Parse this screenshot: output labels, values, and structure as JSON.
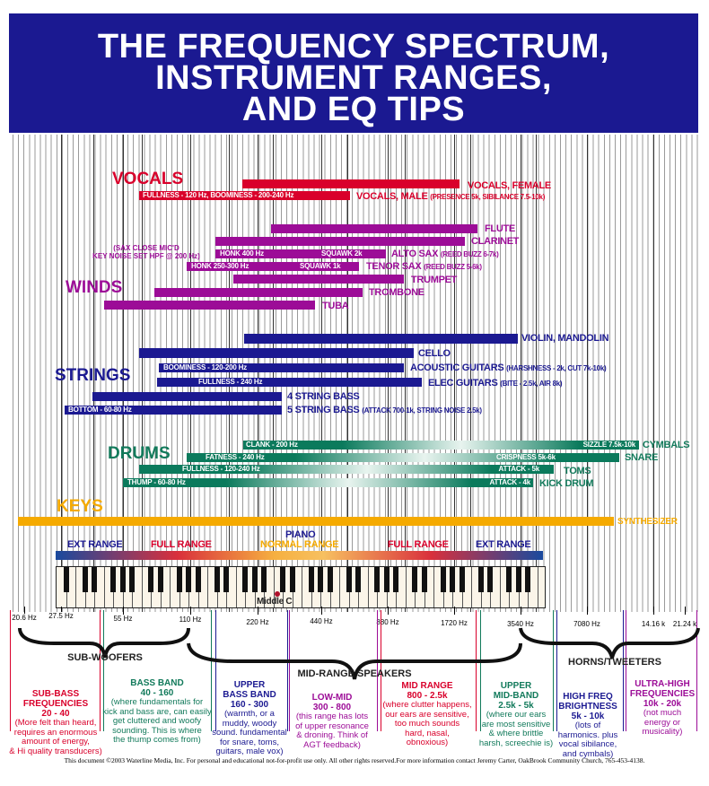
{
  "title": {
    "line1": "THE FREQUENCY SPECTRUM,",
    "line2": "INSTRUMENT RANGES,",
    "line3": "AND EQ TIPS"
  },
  "vocals": {
    "heading": "VOCALS",
    "female": {
      "label": "VOCALS, FEMALE"
    },
    "male": {
      "label": "VOCALS, MALE",
      "note": "(PRESENCE 5k, SIBILANCE 7.5-10k)",
      "inner": "FULLNESS - 120 Hz, BOOMINESS - 200-240 Hz"
    }
  },
  "winds": {
    "heading": "WINDS",
    "sax_note_1": "(SAX CLOSE MIC'D",
    "sax_note_2": "KEY NOISE SET HPF @ 200 Hz)",
    "flute": "FLUTE",
    "clarinet": "CLARINET",
    "alto": {
      "label": "ALTO SAX",
      "note": "(REED BUZZ 6-7k)",
      "inner_left": "HONK 400 Hz",
      "inner_right": "SQUAWK  2k"
    },
    "tenor": {
      "label": "TENOR SAX",
      "note": "(REED BUZZ 5-6k)",
      "inner_left": "HONK 250-300 Hz",
      "inner_right": "SQUAWK  1k"
    },
    "trumpet": "TRUMPET",
    "trombone": "TROMBONE",
    "tuba": "TUBA"
  },
  "strings": {
    "heading": "STRINGS",
    "violin": "VIOLIN, MANDOLIN",
    "cello": "CELLO",
    "acoustic": {
      "label": "ACOUSTIC GUITARS",
      "note": "(HARSHNESS - 2k, CUT 7k-10k)",
      "inner": "BOOMINESS - 120-200 Hz"
    },
    "elec": {
      "label": "ELEC GUITARS",
      "note": "(BITE - 2.5k, AIR 8k)",
      "inner": "FULLNESS - 240 Hz"
    },
    "bass4": "4 STRING BASS",
    "bass5": {
      "label": "5 STRING BASS",
      "note": "(ATTACK 700-1k, STRING NOISE 2.5k)",
      "inner": "BOTTOM - 60-80 Hz"
    }
  },
  "drums": {
    "heading": "DRUMS",
    "cymbals": {
      "label": "CYMBALS",
      "inner_left": "CLANK - 200 Hz",
      "inner_right": "SIZZLE 7.5k-10k"
    },
    "snare": {
      "label": "SNARE",
      "inner_left": "FATNESS - 240 Hz",
      "inner_right": "CRISPNESS 5k-6k"
    },
    "toms": {
      "label": "TOMS",
      "inner_left": "FULLNESS - 120-240 Hz",
      "inner_right": "ATTACK - 5k"
    },
    "kick": {
      "label": "KICK DRUM",
      "inner_left": "THUMP - 60-80 Hz",
      "inner_right": "ATTACK - 4k"
    }
  },
  "keys": {
    "heading": "KEYS",
    "synth": "SYNTHESIZER",
    "piano": "PIANO",
    "ext_range": "EXT RANGE",
    "full_range": "FULL RANGE",
    "normal_range": "NORMAL RANGE",
    "middle_c": "Middle C"
  },
  "frequencies": [
    "20.6 Hz",
    "27.5 Hz",
    "55 Hz",
    "110 Hz",
    "220 Hz",
    "440 Hz",
    "880 Hz",
    "1720 Hz",
    "3540 Hz",
    "7080 Hz",
    "14.16 k",
    "21.24 k"
  ],
  "speakers": {
    "sub": "SUB-WOOFERS",
    "mid": "MID-RANGE SPEAKERS",
    "horns": "HORNS/TWEETERS"
  },
  "bands": [
    {
      "title": [
        "SUB-BASS",
        "FREQUENCIES",
        "20 - 40"
      ],
      "desc": [
        "(More felt than heard,",
        "requires an enormous",
        "amount of energy,",
        "& Hi quality transducers)"
      ],
      "color": "#d9002b"
    },
    {
      "title": [
        "BASS BAND",
        "40 - 160"
      ],
      "desc": [
        "(where fundamentals for",
        "kick and bass are, can easily",
        "get cluttered and woofy",
        "sounding. This is where",
        "the thump comes from)"
      ],
      "color": "#127a5b"
    },
    {
      "title": [
        "UPPER",
        "BASS BAND",
        "160 - 300"
      ],
      "desc": [
        "(warmth, or a",
        "muddy, woody",
        "sound. fundamental",
        "for snare, toms,",
        "guitars, male vox)"
      ],
      "color": "#1b1991"
    },
    {
      "title": [
        "LOW-MID",
        "300 - 800"
      ],
      "desc": [
        "(this range has lots",
        "of upper resonance",
        "& droning. Think of",
        "AGT feedback)"
      ],
      "color": "#9c0c97"
    },
    {
      "title": [
        "MID RANGE",
        "800 - 2.5k"
      ],
      "desc": [
        "(where clutter happens,",
        "our ears are sensitive,",
        "too much sounds",
        "hard, nasal,",
        "obnoxious)"
      ],
      "color": "#d9002b"
    },
    {
      "title": [
        "UPPER",
        "MID-BAND",
        "2.5k - 5k"
      ],
      "desc": [
        "(where our ears",
        "are most sensitive",
        "& where brittle",
        "harsh, screechie is)"
      ],
      "color": "#127a5b"
    },
    {
      "title": [
        "HIGH FREQ",
        "BRIGHTNESS",
        "5k - 10k"
      ],
      "desc": [
        "(lots of",
        "harmonics. plus",
        "vocal sibilance,",
        "and cymbals)"
      ],
      "color": "#1b1991"
    },
    {
      "title": [
        "ULTRA-HIGH",
        "FREQUENCIES",
        "10k - 20k"
      ],
      "desc": [
        "(not much",
        "energy or",
        "musicality)"
      ],
      "color": "#9c0c97"
    }
  ],
  "footer": "This document ©2003 Waterline Media, Inc. For personal and educational not-for-profit use only. All other rights reserved.For more information contact Jeremy Carter, OakBrook Community Church, 765-453-4138."
}
